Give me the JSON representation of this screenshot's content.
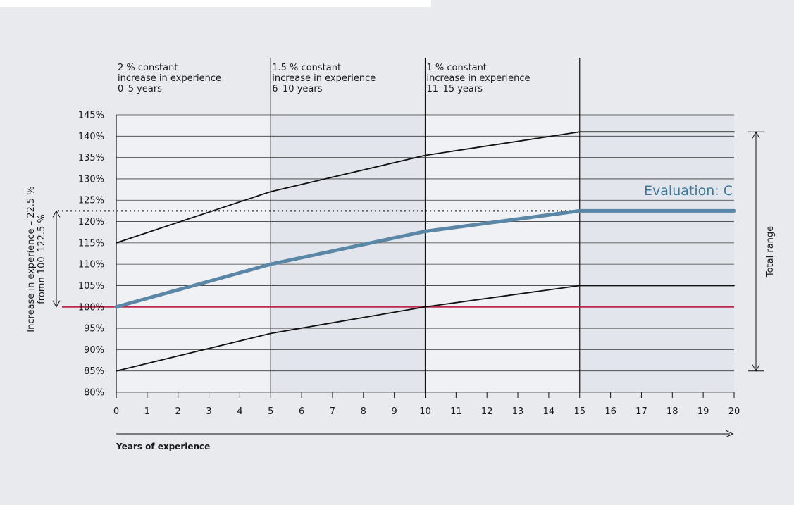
{
  "chart_data": {
    "type": "line",
    "xlabel": "Years of experience",
    "ylabel": "",
    "xlim": [
      0,
      20
    ],
    "ylim": [
      80,
      145
    ],
    "x_ticks": [
      0,
      1,
      2,
      3,
      4,
      5,
      6,
      7,
      8,
      9,
      10,
      11,
      12,
      13,
      14,
      15,
      16,
      17,
      18,
      19,
      20
    ],
    "y_ticks": [
      80,
      85,
      90,
      95,
      100,
      105,
      110,
      115,
      120,
      125,
      130,
      135,
      140,
      145
    ],
    "y_tick_suffix": "%",
    "grid": "horizontal",
    "series": [
      {
        "name": "",
        "role": "upper",
        "color": "#111111",
        "x": [
          0,
          5,
          10,
          15,
          20
        ],
        "y": [
          115,
          127,
          135.5,
          141,
          141
        ]
      },
      {
        "name": "Evaluation: C",
        "role": "evaluation",
        "color": "#5b87a6",
        "x": [
          0,
          5,
          10,
          15,
          20
        ],
        "y": [
          100,
          110,
          117.7,
          122.5,
          122.5
        ]
      },
      {
        "name": "",
        "role": "lower",
        "color": "#111111",
        "x": [
          0,
          5,
          10,
          15,
          20
        ],
        "y": [
          85,
          93.8,
          100,
          105,
          105
        ]
      }
    ],
    "reference_line": {
      "y": 100,
      "color": "#c0284a"
    },
    "dotted_reference": {
      "y": 122.5
    },
    "phases": [
      {
        "from": 0,
        "to": 5,
        "lines": [
          "2 % constant",
          "increase in experience",
          "0–5 years"
        ],
        "shade": "#f0f1f4"
      },
      {
        "from": 5,
        "to": 10,
        "lines": [
          "1.5 % constant",
          "increase in experience",
          "6–10 years"
        ],
        "shade": "#e2e5eb"
      },
      {
        "from": 10,
        "to": 15,
        "lines": [
          "1 % constant",
          "increase in experience",
          "11–15 years"
        ],
        "shade": "#f0f1f4"
      },
      {
        "from": 15,
        "to": 20,
        "lines": [],
        "shade": "#e2e5eb"
      }
    ],
    "left_annotation": {
      "lines": [
        "Increase in experience – 22.5 %",
        "fromn 100–122.5 %"
      ],
      "from": 100,
      "to": 122.5
    },
    "right_annotation": {
      "label": "Total range",
      "from": 85,
      "to": 141
    },
    "evaluation_label": "Evaluation: C"
  }
}
